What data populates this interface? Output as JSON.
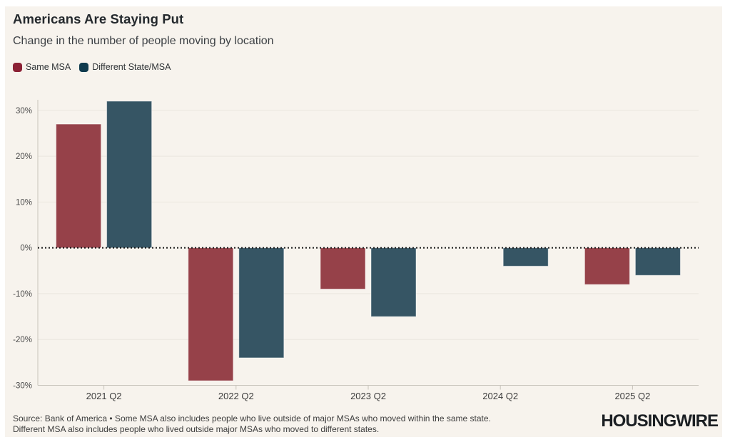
{
  "header": {
    "title": "Americans Are Staying Put",
    "subtitle": "Change in the number of people moving by location"
  },
  "legend": {
    "items": [
      {
        "label": "Same MSA",
        "color": "#8b2135"
      },
      {
        "label": "Different State/MSA",
        "color": "#0f3a4d"
      }
    ]
  },
  "chart_data": {
    "type": "bar",
    "title": "Americans Are Staying Put",
    "subtitle": "Change in the number of people moving by location",
    "categories": [
      "2021 Q2",
      "2022 Q2",
      "2023 Q2",
      "2024 Q2",
      "2025 Q2"
    ],
    "series": [
      {
        "name": "Same MSA",
        "color": "#964149",
        "values": [
          27,
          -29,
          -9,
          0,
          -8
        ]
      },
      {
        "name": "Different State/MSA",
        "color": "#365564",
        "values": [
          32,
          -24,
          -15,
          -4,
          -6
        ]
      }
    ],
    "unit": "%",
    "ylim": [
      -30,
      32.3
    ],
    "ytick_values": [
      30,
      20,
      10,
      0,
      -10,
      -20,
      -30
    ],
    "ytick_labels": [
      "30%",
      "20%",
      "10%",
      "0%",
      "-10%",
      "-20%",
      "-30%"
    ],
    "grid": "horizontal",
    "zero_line": "dotted",
    "legend_position": "top-left"
  },
  "footer": {
    "source_line1": "Source: Bank of America • Some MSA also includes people who live outside of major MSAs who moved within the same state.",
    "source_line2": "Different MSA also includes people who lived outside major MSAs who moved to different states.",
    "brand": "HOUSINGWIRE"
  },
  "colors": {
    "panel_background": "#f7f3ed",
    "page_background": "#ffffff",
    "gridline": "#eae6df",
    "axis_line": "#c8c4bc",
    "zero_line": "#161616",
    "ytick_text": "#4b4b4b",
    "xtick_text": "#3c3c3c"
  }
}
